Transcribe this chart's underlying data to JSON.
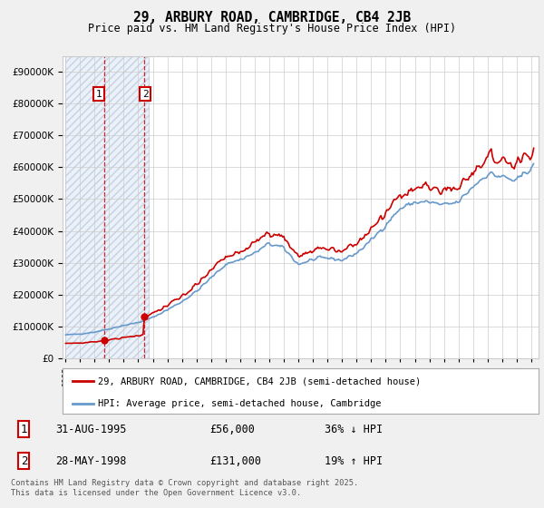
{
  "title": "29, ARBURY ROAD, CAMBRIDGE, CB4 2JB",
  "subtitle": "Price paid vs. HM Land Registry's House Price Index (HPI)",
  "legend_line1": "29, ARBURY ROAD, CAMBRIDGE, CB4 2JB (semi-detached house)",
  "legend_line2": "HPI: Average price, semi-detached house, Cambridge",
  "footnote": "Contains HM Land Registry data © Crown copyright and database right 2025.\nThis data is licensed under the Open Government Licence v3.0.",
  "transaction1_date": "31-AUG-1995",
  "transaction1_price": "£56,000",
  "transaction1_hpi": "36% ↓ HPI",
  "transaction2_date": "28-MAY-1998",
  "transaction2_price": "£131,000",
  "transaction2_hpi": "19% ↑ HPI",
  "transaction1_x": 1995.67,
  "transaction1_y": 56000,
  "transaction2_x": 1998.42,
  "transaction2_y": 131000,
  "vline1_x": 1995.67,
  "vline2_x": 1998.42,
  "hatch_start": 1993.0,
  "hatch_end": 1998.7,
  "ylim": [
    0,
    950000
  ],
  "xlim_start": 1992.8,
  "xlim_end": 2025.5,
  "price_color": "#cc0000",
  "hpi_color": "#6699cc",
  "background_color": "#f0f0f0",
  "plot_bg_color": "#ffffff",
  "years": [
    1993.0,
    1993.08,
    1993.17,
    1993.25,
    1993.33,
    1993.42,
    1993.5,
    1993.58,
    1993.67,
    1993.75,
    1993.83,
    1993.92,
    1994.0,
    1994.08,
    1994.17,
    1994.25,
    1994.33,
    1994.42,
    1994.5,
    1994.58,
    1994.67,
    1994.75,
    1994.83,
    1994.92,
    1995.0,
    1995.08,
    1995.17,
    1995.25,
    1995.33,
    1995.42,
    1995.5,
    1995.58,
    1995.67,
    1995.75,
    1995.83,
    1995.92,
    1996.0,
    1996.08,
    1996.17,
    1996.25,
    1996.33,
    1996.42,
    1996.5,
    1996.58,
    1996.67,
    1996.75,
    1996.83,
    1996.92,
    1997.0,
    1997.08,
    1997.17,
    1997.25,
    1997.33,
    1997.42,
    1997.5,
    1997.58,
    1997.67,
    1997.75,
    1997.83,
    1997.92,
    1998.0,
    1998.08,
    1998.17,
    1998.25,
    1998.33,
    1998.42,
    1998.5,
    1998.58,
    1998.67,
    1998.75,
    1998.83,
    1998.92,
    1999.0,
    1999.08,
    1999.17,
    1999.25,
    1999.33,
    1999.42,
    1999.5,
    1999.58,
    1999.67,
    1999.75,
    1999.83,
    1999.92,
    2000.0,
    2000.08,
    2000.17,
    2000.25,
    2000.33,
    2000.42,
    2000.5,
    2000.58,
    2000.67,
    2000.75,
    2000.83,
    2000.92,
    2001.0,
    2001.08,
    2001.17,
    2001.25,
    2001.33,
    2001.42,
    2001.5,
    2001.58,
    2001.67,
    2001.75,
    2001.83,
    2001.92,
    2002.0,
    2002.08,
    2002.17,
    2002.25,
    2002.33,
    2002.42,
    2002.5,
    2002.58,
    2002.67,
    2002.75,
    2002.83,
    2002.92,
    2003.0,
    2003.08,
    2003.17,
    2003.25,
    2003.33,
    2003.42,
    2003.5,
    2003.58,
    2003.67,
    2003.75,
    2003.83,
    2003.92,
    2004.0,
    2004.08,
    2004.17,
    2004.25,
    2004.33,
    2004.42,
    2004.5,
    2004.58,
    2004.67,
    2004.75,
    2004.83,
    2004.92,
    2005.0,
    2005.08,
    2005.17,
    2005.25,
    2005.33,
    2005.42,
    2005.5,
    2005.58,
    2005.67,
    2005.75,
    2005.83,
    2005.92,
    2006.0,
    2006.08,
    2006.17,
    2006.25,
    2006.33,
    2006.42,
    2006.5,
    2006.58,
    2006.67,
    2006.75,
    2006.83,
    2006.92,
    2007.0,
    2007.08,
    2007.17,
    2007.25,
    2007.33,
    2007.42,
    2007.5,
    2007.58,
    2007.67,
    2007.75,
    2007.83,
    2007.92,
    2008.0,
    2008.08,
    2008.17,
    2008.25,
    2008.33,
    2008.42,
    2008.5,
    2008.58,
    2008.67,
    2008.75,
    2008.83,
    2008.92,
    2009.0,
    2009.08,
    2009.17,
    2009.25,
    2009.33,
    2009.42,
    2009.5,
    2009.58,
    2009.67,
    2009.75,
    2009.83,
    2009.92,
    2010.0,
    2010.08,
    2010.17,
    2010.25,
    2010.33,
    2010.42,
    2010.5,
    2010.58,
    2010.67,
    2010.75,
    2010.83,
    2010.92,
    2011.0,
    2011.08,
    2011.17,
    2011.25,
    2011.33,
    2011.42,
    2011.5,
    2011.58,
    2011.67,
    2011.75,
    2011.83,
    2011.92,
    2012.0,
    2012.08,
    2012.17,
    2012.25,
    2012.33,
    2012.42,
    2012.5,
    2012.58,
    2012.67,
    2012.75,
    2012.83,
    2012.92,
    2013.0,
    2013.08,
    2013.17,
    2013.25,
    2013.33,
    2013.42,
    2013.5,
    2013.58,
    2013.67,
    2013.75,
    2013.83,
    2013.92,
    2014.0,
    2014.08,
    2014.17,
    2014.25,
    2014.33,
    2014.42,
    2014.5,
    2014.58,
    2014.67,
    2014.75,
    2014.83,
    2014.92,
    2015.0,
    2015.08,
    2015.17,
    2015.25,
    2015.33,
    2015.42,
    2015.5,
    2015.58,
    2015.67,
    2015.75,
    2015.83,
    2015.92,
    2016.0,
    2016.08,
    2016.17,
    2016.25,
    2016.33,
    2016.42,
    2016.5,
    2016.58,
    2016.67,
    2016.75,
    2016.83,
    2016.92,
    2017.0,
    2017.08,
    2017.17,
    2017.25,
    2017.33,
    2017.42,
    2017.5,
    2017.58,
    2017.67,
    2017.75,
    2017.83,
    2017.92,
    2018.0,
    2018.08,
    2018.17,
    2018.25,
    2018.33,
    2018.42,
    2018.5,
    2018.58,
    2018.67,
    2018.75,
    2018.83,
    2018.92,
    2019.0,
    2019.08,
    2019.17,
    2019.25,
    2019.33,
    2019.42,
    2019.5,
    2019.58,
    2019.67,
    2019.75,
    2019.83,
    2019.92,
    2020.0,
    2020.08,
    2020.17,
    2020.25,
    2020.33,
    2020.42,
    2020.5,
    2020.58,
    2020.67,
    2020.75,
    2020.83,
    2020.92,
    2021.0,
    2021.08,
    2021.17,
    2021.25,
    2021.33,
    2021.42,
    2021.5,
    2021.58,
    2021.67,
    2021.75,
    2021.83,
    2021.92,
    2022.0,
    2022.08,
    2022.17,
    2022.25,
    2022.33,
    2022.42,
    2022.5,
    2022.58,
    2022.67,
    2022.75,
    2022.83,
    2022.92,
    2023.0,
    2023.08,
    2023.17,
    2023.25,
    2023.33,
    2023.42,
    2023.5,
    2023.58,
    2023.67,
    2023.75,
    2023.83,
    2023.92,
    2024.0,
    2024.08,
    2024.17,
    2024.25,
    2024.33,
    2024.42,
    2024.5,
    2024.58,
    2024.67,
    2024.75,
    2024.83,
    2024.92,
    2025.0,
    2025.08,
    2025.17
  ]
}
